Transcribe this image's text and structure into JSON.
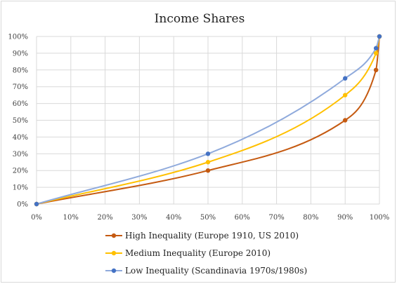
{
  "chart_data": {
    "type": "line",
    "title": "Income Shares",
    "xlabel": "",
    "ylabel": "",
    "xlim": [
      0,
      100
    ],
    "ylim": [
      0,
      100
    ],
    "x_tick_labels": [
      "0%",
      "10%",
      "20%",
      "30%",
      "40%",
      "50%",
      "60%",
      "70%",
      "80%",
      "90%",
      "100%"
    ],
    "y_tick_labels": [
      "0%",
      "10%",
      "20%",
      "30%",
      "40%",
      "50%",
      "60%",
      "70%",
      "80%",
      "90%",
      "100%"
    ],
    "grid": true,
    "legend_position": "bottom",
    "series": [
      {
        "name": "High Inequality (Europe 1910, US 2010)",
        "color": "#c55a11",
        "points": [
          [
            0,
            0
          ],
          [
            50,
            20
          ],
          [
            90,
            50
          ],
          [
            99,
            80
          ],
          [
            100,
            100
          ]
        ]
      },
      {
        "name": "Medium Inequality (Europe 2010)",
        "color": "#ffc000",
        "points": [
          [
            0,
            0
          ],
          [
            50,
            25
          ],
          [
            90,
            65
          ],
          [
            99,
            90
          ],
          [
            100,
            100
          ]
        ]
      },
      {
        "name": "Low Inequality (Scandinavia 1970s/1980s)",
        "color": "#8faadc",
        "marker_color": "#4472c4",
        "points": [
          [
            0,
            0
          ],
          [
            50,
            30
          ],
          [
            90,
            75
          ],
          [
            99,
            93
          ],
          [
            100,
            100
          ]
        ]
      }
    ]
  }
}
